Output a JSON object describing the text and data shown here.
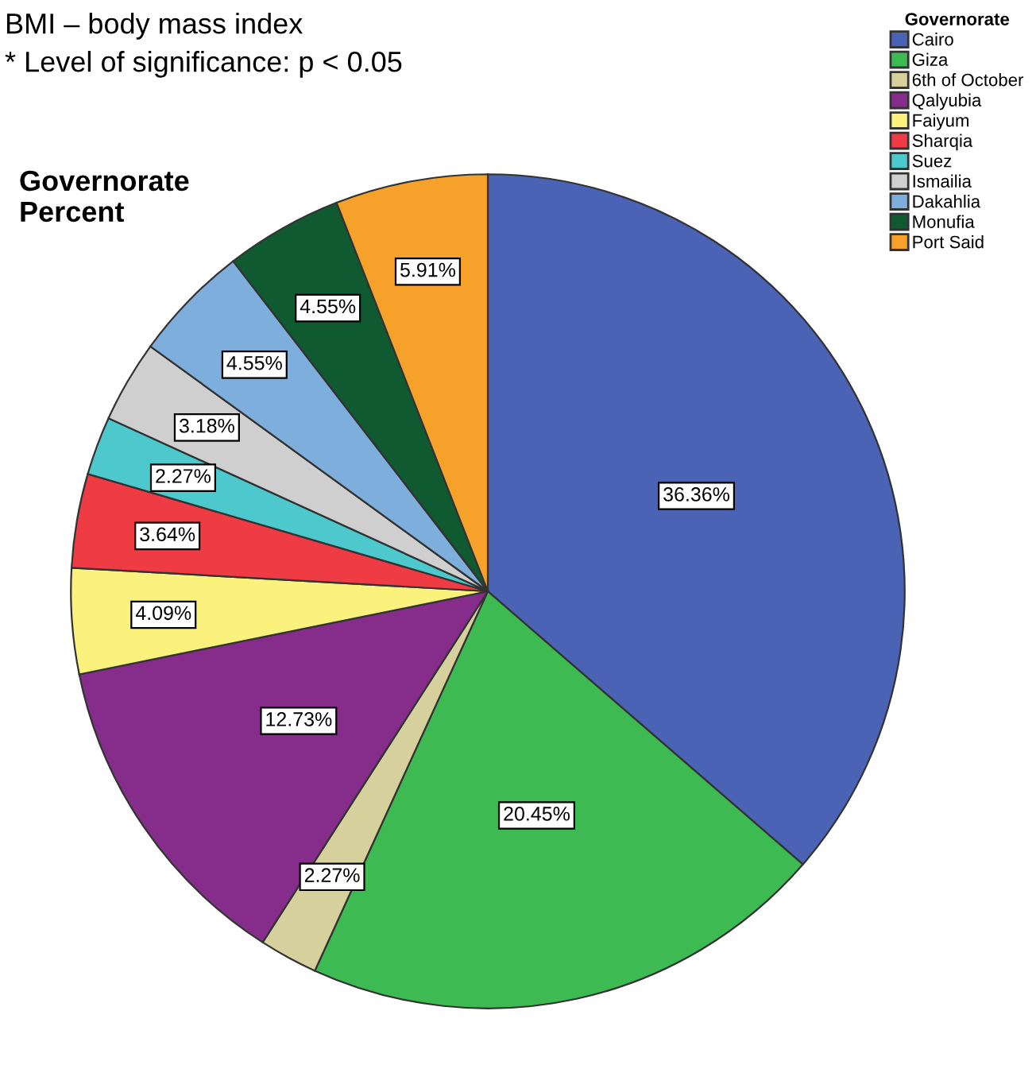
{
  "chart_data": {
    "type": "pie",
    "title": "Governorate\nPercent",
    "legend_title": "Governorate",
    "legend": "top right",
    "annotations": [
      "BMI – body mass index",
      "* Level of significance: p < 0.05"
    ],
    "categories": [
      "Cairo",
      "Giza",
      "6th of October",
      "Qalyubia",
      "Faiyum",
      "Sharqia",
      "Suez",
      "Ismailia",
      "Dakahlia",
      "Monufia",
      "Port Said"
    ],
    "values": [
      36.36,
      20.45,
      2.27,
      12.73,
      4.09,
      3.64,
      2.27,
      3.18,
      4.55,
      4.55,
      5.91
    ],
    "colors": [
      "#4a63b5",
      "#3dbb52",
      "#d6d09c",
      "#862d8b",
      "#faf27c",
      "#ee3b44",
      "#4dc8cc",
      "#cfcfcf",
      "#7eaedc",
      "#0f5a31",
      "#f6a22a"
    ],
    "value_labels": [
      "36.36%",
      "20.45%",
      "2.27%",
      "12.73%",
      "4.09%",
      "3.64%",
      "2.27%",
      "3.18%",
      "4.55%",
      "4.55%",
      "5.91%"
    ]
  }
}
